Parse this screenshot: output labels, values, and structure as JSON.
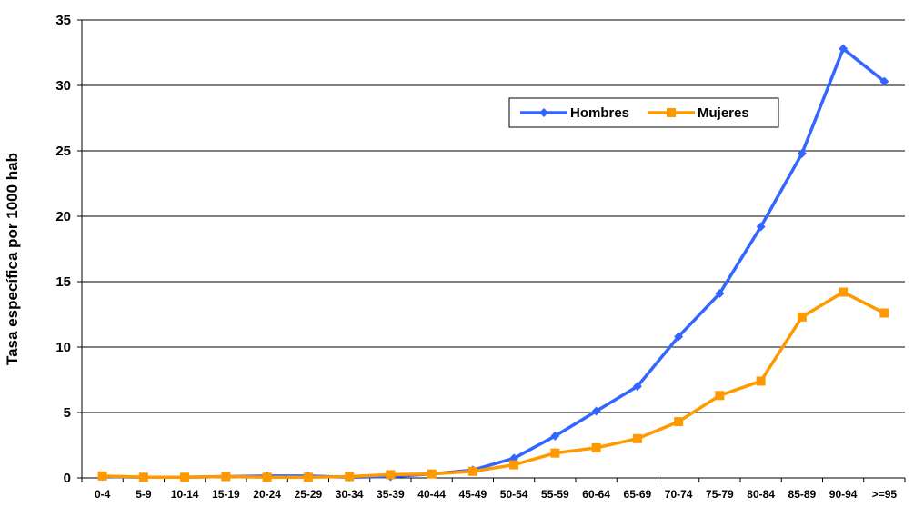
{
  "chart_data": {
    "type": "line",
    "title": "",
    "xlabel": "",
    "ylabel": "Tasa específica por 1000 hab",
    "ylim": [
      0,
      35
    ],
    "yticks": [
      0,
      5,
      10,
      15,
      20,
      25,
      30,
      35
    ],
    "grid": "horizontal",
    "legend_position": "top-right",
    "categories": [
      "0-4",
      "5-9",
      "10-14",
      "15-19",
      "20-24",
      "25-29",
      "30-34",
      "35-39",
      "40-44",
      "45-49",
      "50-54",
      "55-59",
      "60-64",
      "65-69",
      "70-74",
      "75-79",
      "80-84",
      "85-89",
      "90-94",
      ">=95"
    ],
    "series": [
      {
        "name": "Hombres",
        "color": "#3366FF",
        "marker": "diamond",
        "values": [
          0.1,
          0.05,
          0.05,
          0.1,
          0.15,
          0.15,
          0.05,
          0.1,
          0.3,
          0.6,
          1.5,
          3.2,
          5.1,
          7.0,
          10.8,
          14.1,
          19.2,
          24.8,
          32.8,
          30.3
        ]
      },
      {
        "name": "Mujeres",
        "color": "#FF9900",
        "marker": "square",
        "values": [
          0.15,
          0.05,
          0.05,
          0.1,
          0.05,
          0.05,
          0.1,
          0.25,
          0.3,
          0.5,
          1.0,
          1.9,
          2.3,
          3.0,
          4.3,
          6.3,
          7.4,
          12.3,
          14.2,
          12.6
        ]
      }
    ]
  }
}
